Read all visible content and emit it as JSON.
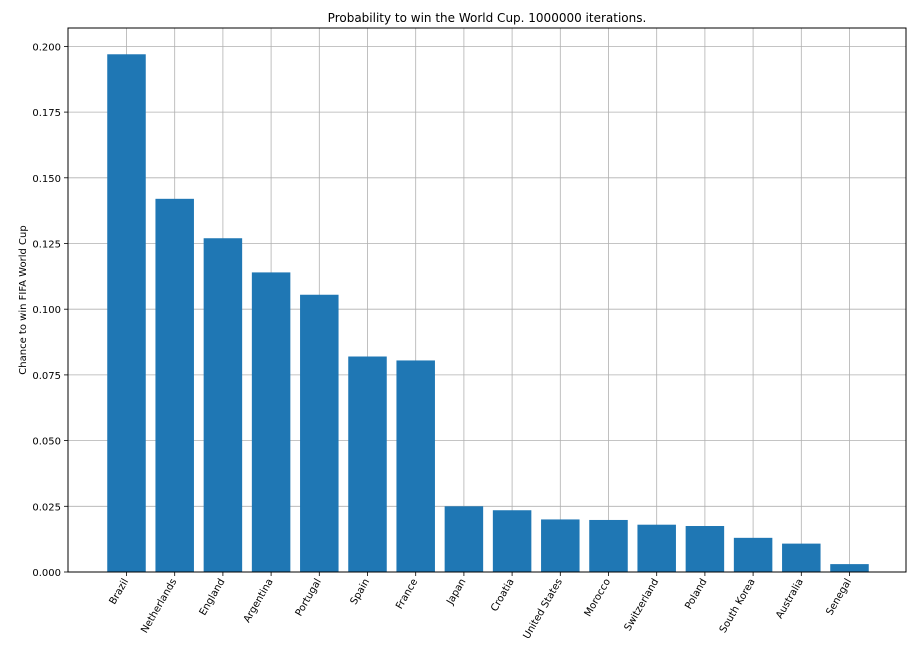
{
  "chart_data": {
    "type": "bar",
    "title": "Probability to win the World Cup. 1000000 iterations.",
    "xlabel": "",
    "ylabel": "Chance to win FIFA World Cup",
    "categories": [
      "Brazil",
      "Netherlands",
      "England",
      "Argentina",
      "Portugal",
      "Spain",
      "France",
      "Japan",
      "Croatia",
      "United States",
      "Morocco",
      "Switzerland",
      "Poland",
      "South Korea",
      "Australia",
      "Senegal"
    ],
    "values": [
      0.197,
      0.142,
      0.127,
      0.114,
      0.1055,
      0.082,
      0.0805,
      0.025,
      0.0235,
      0.02,
      0.0198,
      0.018,
      0.0175,
      0.013,
      0.0108,
      0.003
    ],
    "ylim": [
      0,
      0.207
    ],
    "yticks": [
      "0.000",
      "0.025",
      "0.050",
      "0.075",
      "0.100",
      "0.125",
      "0.150",
      "0.175",
      "0.200"
    ],
    "grid": true,
    "bar_color": "#1f77b4",
    "grid_color": "#b0b0b0"
  }
}
